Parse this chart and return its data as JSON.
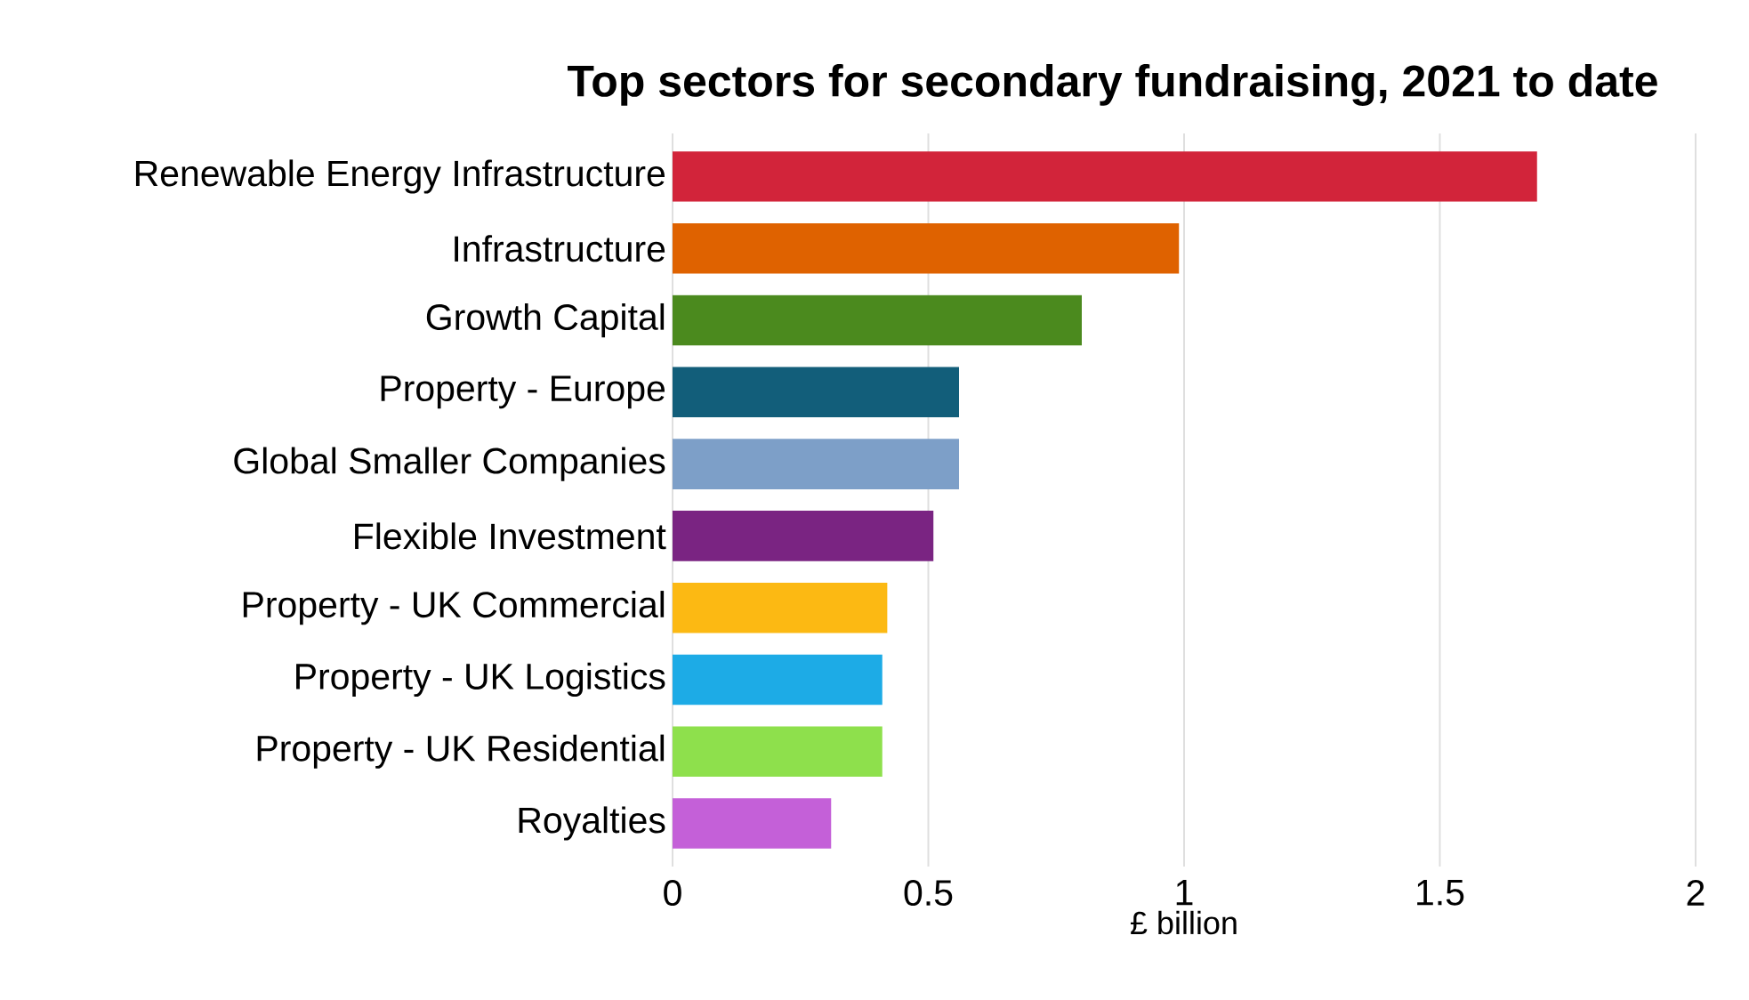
{
  "chart_data": {
    "type": "bar",
    "orientation": "horizontal",
    "title": "Top sectors for secondary fundraising, 2021 to date",
    "xlabel": "£ billion",
    "categories": [
      "Renewable Energy Infrastructure",
      "Infrastructure",
      "Growth Capital",
      "Property - Europe",
      "Global Smaller Companies",
      "Flexible Investment",
      "Property - UK Commercial",
      "Property - UK Logistics",
      "Property - UK Residential",
      "Royalties"
    ],
    "values": [
      1.69,
      0.99,
      0.8,
      0.56,
      0.56,
      0.51,
      0.42,
      0.41,
      0.41,
      0.31
    ],
    "colors": [
      "#d2243a",
      "#df6200",
      "#4b8a1e",
      "#125e7a",
      "#7d9fc8",
      "#7a2482",
      "#fcb913",
      "#1dabe6",
      "#8ee04c",
      "#c460d8"
    ],
    "xlim": [
      0,
      2
    ],
    "xticks": [
      0,
      0.5,
      1,
      1.5,
      2
    ],
    "grid": "x"
  }
}
